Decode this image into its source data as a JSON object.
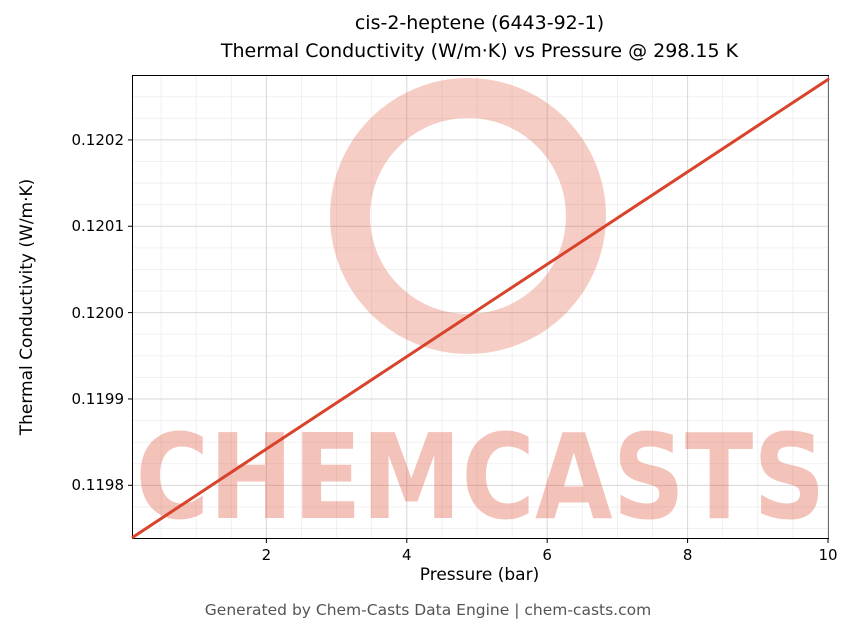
{
  "title": {
    "line1": "cis-2-heptene (6443-92-1)",
    "line2": "Thermal Conductivity (W/m·K) vs Pressure @ 298.15 K"
  },
  "footer": "Generated by Chem-Casts Data Engine | chem-casts.com",
  "watermark": {
    "text": "CHEMCASTS",
    "color": "#dd4a2e",
    "text_opacity": 0.33,
    "ring_opacity": 0.28
  },
  "chart_data": {
    "type": "line",
    "title": "cis-2-heptene (6443-92-1)\nThermal Conductivity (W/m·K) vs Pressure @ 298.15 K",
    "xlabel": "Pressure (bar)",
    "ylabel": "Thermal Conductivity (W/m·K)",
    "xlim": [
      0.1,
      10
    ],
    "ylim": [
      0.119739,
      0.120274
    ],
    "xticks": [
      2,
      4,
      6,
      8,
      10
    ],
    "xtick_labels": [
      "2",
      "4",
      "6",
      "8",
      "10"
    ],
    "yticks": [
      0.1198,
      0.1199,
      0.12,
      0.1201,
      0.1202
    ],
    "ytick_labels": [
      "0.1198",
      "0.1199",
      "0.1200",
      "0.1201",
      "0.1202"
    ],
    "minor_xticks": [
      0.5,
      1,
      1.5,
      2.5,
      3,
      3.5,
      4.5,
      5,
      5.5,
      6.5,
      7,
      7.5,
      8.5,
      9,
      9.5
    ],
    "minor_yticks": [
      0.11975,
      0.119775,
      0.119825,
      0.11985,
      0.119875,
      0.119925,
      0.11995,
      0.119975,
      0.120025,
      0.12005,
      0.120075,
      0.120125,
      0.12015,
      0.120175,
      0.120225,
      0.12025
    ],
    "grid_major_color": "#d7d7d7",
    "grid_minor_color": "#ededed",
    "line_color": "#d9432b",
    "line_width": 3,
    "legend": "none",
    "grid": "on",
    "series": [
      {
        "name": "Thermal Conductivity",
        "x": [
          0.1,
          2,
          4,
          6,
          8,
          10
        ],
        "y": [
          0.11974,
          0.119842,
          0.119949,
          0.120056,
          0.120163,
          0.12027
        ]
      }
    ]
  }
}
